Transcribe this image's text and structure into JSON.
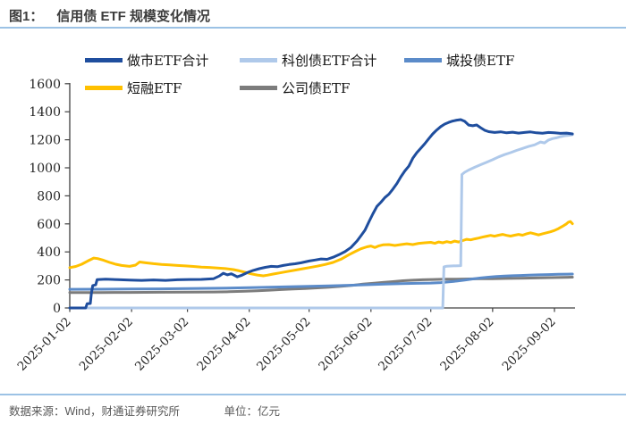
{
  "header": {
    "figure_label": "图1：",
    "title": "信用债 ETF 规模变化情况"
  },
  "footer": {
    "source_label": "数据来源：Wind，财通证券研究所",
    "unit_label": "单位：亿元"
  },
  "colors": {
    "divider_blue": "#9cc2e5",
    "axis": "#404040",
    "title_text": "#3d3d3d",
    "footer_text": "#595959"
  },
  "chart_data": {
    "type": "line",
    "title": "信用债 ETF 规模变化情况",
    "unit": "亿元",
    "background": "#ffffff",
    "grid": false,
    "legend_position": "top-left",
    "x_axis": {
      "label_rotation_deg": -45,
      "domain_days": [
        0,
        253
      ],
      "ticks": [
        {
          "day": 0,
          "label": "2025-01-02"
        },
        {
          "day": 31,
          "label": "2025-02-02"
        },
        {
          "day": 59,
          "label": "2025-03-02"
        },
        {
          "day": 90,
          "label": "2025-04-02"
        },
        {
          "day": 120,
          "label": "2025-05-02"
        },
        {
          "day": 151,
          "label": "2025-06-02"
        },
        {
          "day": 181,
          "label": "2025-07-02"
        },
        {
          "day": 212,
          "label": "2025-08-02"
        },
        {
          "day": 243,
          "label": "2025-09-02"
        }
      ]
    },
    "y_axis": {
      "min": 0,
      "max": 1600,
      "step": 200,
      "ticks": [
        0,
        200,
        400,
        600,
        800,
        1000,
        1200,
        1400,
        1600
      ]
    },
    "series": [
      {
        "name": "做市ETF合计",
        "color": "#1f4e9e",
        "z": 5,
        "points": [
          [
            0,
            0
          ],
          [
            8,
            0
          ],
          [
            8.7,
            30
          ],
          [
            10.3,
            32
          ],
          [
            10.8,
            100
          ],
          [
            11.5,
            160
          ],
          [
            13,
            165
          ],
          [
            13.7,
            202
          ],
          [
            18,
            206
          ],
          [
            24,
            202
          ],
          [
            30,
            199
          ],
          [
            36,
            197
          ],
          [
            42,
            200
          ],
          [
            48,
            197
          ],
          [
            54,
            201
          ],
          [
            60,
            203
          ],
          [
            66,
            204
          ],
          [
            72,
            208
          ],
          [
            75,
            228
          ],
          [
            77,
            248
          ],
          [
            79,
            236
          ],
          [
            81,
            244
          ],
          [
            84,
            222
          ],
          [
            86,
            232
          ],
          [
            89,
            252
          ],
          [
            92,
            268
          ],
          [
            95,
            280
          ],
          [
            98,
            290
          ],
          [
            101,
            297
          ],
          [
            104,
            294
          ],
          [
            107,
            303
          ],
          [
            110,
            310
          ],
          [
            113,
            315
          ],
          [
            116,
            322
          ],
          [
            120,
            335
          ],
          [
            123,
            342
          ],
          [
            126,
            350
          ],
          [
            129,
            347
          ],
          [
            132,
            362
          ],
          [
            135,
            380
          ],
          [
            138,
            402
          ],
          [
            141,
            432
          ],
          [
            144,
            478
          ],
          [
            146,
            515
          ],
          [
            148,
            555
          ],
          [
            150,
            615
          ],
          [
            152,
            672
          ],
          [
            154,
            725
          ],
          [
            156,
            755
          ],
          [
            158,
            788
          ],
          [
            160,
            812
          ],
          [
            162,
            848
          ],
          [
            164,
            888
          ],
          [
            166,
            936
          ],
          [
            168,
            978
          ],
          [
            170,
            1012
          ],
          [
            172,
            1068
          ],
          [
            174,
            1108
          ],
          [
            176,
            1140
          ],
          [
            178,
            1172
          ],
          [
            180,
            1208
          ],
          [
            182,
            1242
          ],
          [
            184,
            1270
          ],
          [
            186,
            1294
          ],
          [
            188,
            1312
          ],
          [
            190,
            1324
          ],
          [
            192,
            1334
          ],
          [
            194,
            1340
          ],
          [
            196,
            1344
          ],
          [
            198,
            1332
          ],
          [
            200,
            1305
          ],
          [
            202,
            1300
          ],
          [
            204,
            1306
          ],
          [
            206,
            1286
          ],
          [
            208,
            1268
          ],
          [
            210,
            1258
          ],
          [
            213,
            1252
          ],
          [
            216,
            1257
          ],
          [
            219,
            1250
          ],
          [
            222,
            1254
          ],
          [
            225,
            1248
          ],
          [
            228,
            1252
          ],
          [
            231,
            1256
          ],
          [
            234,
            1250
          ],
          [
            237,
            1247
          ],
          [
            240,
            1252
          ],
          [
            243,
            1250
          ],
          [
            246,
            1246
          ],
          [
            249,
            1248
          ],
          [
            252,
            1242
          ]
        ]
      },
      {
        "name": "科创债ETF合计",
        "color": "#afc9ea",
        "z": 4,
        "points": [
          [
            0,
            0
          ],
          [
            30,
            0
          ],
          [
            60,
            0
          ],
          [
            90,
            0
          ],
          [
            120,
            0
          ],
          [
            150,
            0
          ],
          [
            170,
            0
          ],
          [
            187,
            0
          ],
          [
            187.6,
            293
          ],
          [
            189,
            298
          ],
          [
            192,
            300
          ],
          [
            196,
            302
          ],
          [
            196.6,
            952
          ],
          [
            198,
            968
          ],
          [
            200,
            984
          ],
          [
            203,
            1004
          ],
          [
            206,
            1022
          ],
          [
            209,
            1040
          ],
          [
            212,
            1058
          ],
          [
            215,
            1078
          ],
          [
            218,
            1094
          ],
          [
            221,
            1108
          ],
          [
            224,
            1124
          ],
          [
            227,
            1138
          ],
          [
            230,
            1152
          ],
          [
            233,
            1164
          ],
          [
            236,
            1184
          ],
          [
            238,
            1178
          ],
          [
            240,
            1198
          ],
          [
            242,
            1208
          ],
          [
            244,
            1214
          ],
          [
            246,
            1222
          ],
          [
            248,
            1228
          ],
          [
            250,
            1232
          ],
          [
            252,
            1236
          ]
        ]
      },
      {
        "name": "城投债ETF",
        "color": "#5b8bc9",
        "z": 2,
        "points": [
          [
            0,
            133
          ],
          [
            15,
            134
          ],
          [
            30,
            135
          ],
          [
            45,
            136
          ],
          [
            60,
            138
          ],
          [
            75,
            141
          ],
          [
            90,
            145
          ],
          [
            100,
            148
          ],
          [
            110,
            151
          ],
          [
            120,
            154
          ],
          [
            130,
            158
          ],
          [
            140,
            162
          ],
          [
            150,
            166
          ],
          [
            158,
            170
          ],
          [
            166,
            173
          ],
          [
            174,
            176
          ],
          [
            181,
            178
          ],
          [
            186,
            181
          ],
          [
            190,
            186
          ],
          [
            194,
            192
          ],
          [
            198,
            199
          ],
          [
            202,
            207
          ],
          [
            206,
            214
          ],
          [
            210,
            220
          ],
          [
            214,
            225
          ],
          [
            218,
            228
          ],
          [
            222,
            230
          ],
          [
            226,
            232
          ],
          [
            230,
            234
          ],
          [
            235,
            236
          ],
          [
            240,
            238
          ],
          [
            245,
            240
          ],
          [
            252,
            242
          ]
        ]
      },
      {
        "name": "短融ETF",
        "color": "#ffc000",
        "z": 3,
        "points": [
          [
            0,
            288
          ],
          [
            3,
            296
          ],
          [
            6,
            312
          ],
          [
            9,
            335
          ],
          [
            12,
            356
          ],
          [
            14,
            352
          ],
          [
            17,
            340
          ],
          [
            20,
            325
          ],
          [
            23,
            312
          ],
          [
            26,
            303
          ],
          [
            30,
            297
          ],
          [
            33,
            306
          ],
          [
            35,
            328
          ],
          [
            38,
            322
          ],
          [
            42,
            316
          ],
          [
            46,
            311
          ],
          [
            50,
            307
          ],
          [
            54,
            303
          ],
          [
            58,
            300
          ],
          [
            62,
            296
          ],
          [
            66,
            292
          ],
          [
            70,
            289
          ],
          [
            74,
            285
          ],
          [
            78,
            281
          ],
          [
            82,
            274
          ],
          [
            85,
            265
          ],
          [
            88,
            254
          ],
          [
            91,
            243
          ],
          [
            94,
            235
          ],
          [
            97,
            229
          ],
          [
            99,
            234
          ],
          [
            102,
            242
          ],
          [
            105,
            250
          ],
          [
            109,
            260
          ],
          [
            113,
            270
          ],
          [
            117,
            280
          ],
          [
            120,
            288
          ],
          [
            124,
            298
          ],
          [
            128,
            310
          ],
          [
            132,
            325
          ],
          [
            136,
            348
          ],
          [
            140,
            380
          ],
          [
            143,
            402
          ],
          [
            146,
            422
          ],
          [
            149,
            436
          ],
          [
            151,
            442
          ],
          [
            153,
            431
          ],
          [
            155,
            443
          ],
          [
            157,
            450
          ],
          [
            160,
            452
          ],
          [
            163,
            446
          ],
          [
            166,
            452
          ],
          [
            169,
            458
          ],
          [
            172,
            452
          ],
          [
            175,
            461
          ],
          [
            178,
            465
          ],
          [
            181,
            468
          ],
          [
            183,
            461
          ],
          [
            185,
            471
          ],
          [
            187,
            465
          ],
          [
            189,
            473
          ],
          [
            191,
            467
          ],
          [
            193,
            477
          ],
          [
            195,
            471
          ],
          [
            197,
            481
          ],
          [
            199,
            490
          ],
          [
            201,
            486
          ],
          [
            203,
            493
          ],
          [
            205,
            499
          ],
          [
            207,
            506
          ],
          [
            209,
            512
          ],
          [
            211,
            518
          ],
          [
            213,
            512
          ],
          [
            215,
            519
          ],
          [
            217,
            525
          ],
          [
            219,
            518
          ],
          [
            221,
            513
          ],
          [
            223,
            519
          ],
          [
            225,
            525
          ],
          [
            227,
            519
          ],
          [
            229,
            529
          ],
          [
            231,
            536
          ],
          [
            233,
            529
          ],
          [
            235,
            521
          ],
          [
            237,
            529
          ],
          [
            239,
            536
          ],
          [
            241,
            543
          ],
          [
            243,
            553
          ],
          [
            245,
            566
          ],
          [
            247,
            582
          ],
          [
            249,
            600
          ],
          [
            250,
            612
          ],
          [
            251,
            617
          ],
          [
            252,
            601
          ]
        ]
      },
      {
        "name": "公司债ETF",
        "color": "#7c7c7c",
        "z": 1,
        "points": [
          [
            0,
            110
          ],
          [
            15,
            110
          ],
          [
            30,
            111
          ],
          [
            45,
            112
          ],
          [
            60,
            113
          ],
          [
            72,
            114
          ],
          [
            80,
            116
          ],
          [
            88,
            119
          ],
          [
            94,
            123
          ],
          [
            100,
            127
          ],
          [
            106,
            131
          ],
          [
            112,
            135
          ],
          [
            118,
            139
          ],
          [
            124,
            143
          ],
          [
            130,
            148
          ],
          [
            136,
            154
          ],
          [
            142,
            162
          ],
          [
            147,
            170
          ],
          [
            152,
            176
          ],
          [
            157,
            182
          ],
          [
            162,
            188
          ],
          [
            167,
            194
          ],
          [
            172,
            198
          ],
          [
            177,
            201
          ],
          [
            182,
            203
          ],
          [
            188,
            205
          ],
          [
            194,
            206
          ],
          [
            200,
            207
          ],
          [
            206,
            208
          ],
          [
            212,
            209
          ],
          [
            220,
            211
          ],
          [
            228,
            213
          ],
          [
            236,
            215
          ],
          [
            244,
            217
          ],
          [
            252,
            220
          ]
        ]
      }
    ]
  }
}
